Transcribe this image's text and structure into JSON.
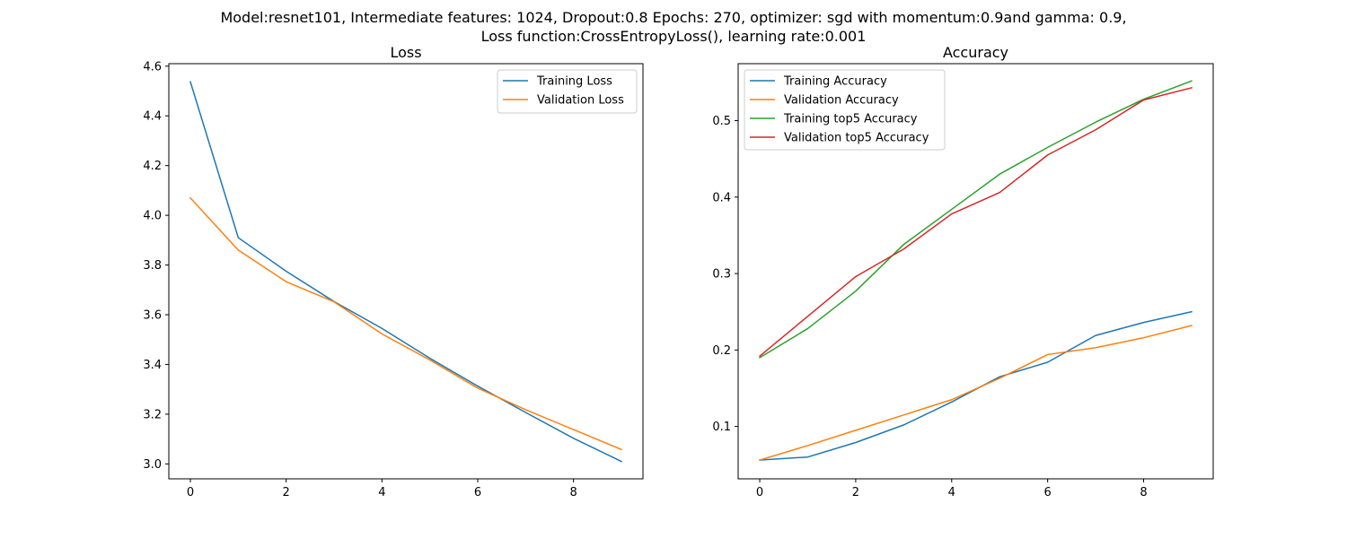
{
  "suptitle": {
    "line1": "Model:resnet101, Intermediate features: 1024, Dropout:0.8 Epochs: 270, optimizer: sgd with momentum:0.9and gamma: 0.9,",
    "line2": "Loss function:CrossEntropyLoss(), learning rate:0.001"
  },
  "chart_data": [
    {
      "type": "line",
      "title": "Loss",
      "xlabel": "",
      "ylabel": "",
      "x": [
        0,
        1,
        2,
        3,
        4,
        5,
        6,
        7,
        8,
        9
      ],
      "xlim": [
        -0.45,
        9.45
      ],
      "ylim": [
        2.94,
        4.61
      ],
      "xticks": [
        0,
        2,
        4,
        6,
        8
      ],
      "yticks": [
        3.0,
        3.2,
        3.4,
        3.6,
        3.8,
        4.0,
        4.2,
        4.4,
        4.6
      ],
      "ytick_labels": [
        "3.0",
        "3.2",
        "3.4",
        "3.6",
        "3.8",
        "4.0",
        "4.2",
        "4.4",
        "4.6"
      ],
      "grid": false,
      "legend": "upper right",
      "series": [
        {
          "name": "Training Loss",
          "color": "#1f77b4",
          "values": [
            4.537,
            3.91,
            3.775,
            3.653,
            3.545,
            3.425,
            3.313,
            3.207,
            3.103,
            3.01
          ]
        },
        {
          "name": "Validation Loss",
          "color": "#ff7f0e",
          "values": [
            4.07,
            3.86,
            3.733,
            3.652,
            3.523,
            3.418,
            3.305,
            3.218,
            3.138,
            3.058
          ]
        }
      ]
    },
    {
      "type": "line",
      "title": "Accuracy",
      "xlabel": "",
      "ylabel": "",
      "x": [
        0,
        1,
        2,
        3,
        4,
        5,
        6,
        7,
        8,
        9
      ],
      "xlim": [
        -0.45,
        9.45
      ],
      "ylim": [
        0.0315,
        0.5745
      ],
      "xticks": [
        0,
        2,
        4,
        6,
        8
      ],
      "yticks": [
        0.1,
        0.2,
        0.3,
        0.4,
        0.5
      ],
      "ytick_labels": [
        "0.1",
        "0.2",
        "0.3",
        "0.4",
        "0.5"
      ],
      "grid": false,
      "legend": "upper left",
      "series": [
        {
          "name": "Training Accuracy",
          "color": "#1f77b4",
          "values": [
            0.056,
            0.06,
            0.079,
            0.102,
            0.132,
            0.165,
            0.184,
            0.219,
            0.236,
            0.25
          ]
        },
        {
          "name": "Validation Accuracy",
          "color": "#ff7f0e",
          "values": [
            0.056,
            0.075,
            0.095,
            0.115,
            0.135,
            0.163,
            0.194,
            0.203,
            0.216,
            0.232
          ]
        },
        {
          "name": "Training top5 Accuracy",
          "color": "#2ca02c",
          "values": [
            0.19,
            0.228,
            0.277,
            0.338,
            0.384,
            0.43,
            0.465,
            0.498,
            0.528,
            0.552
          ]
        },
        {
          "name": "Validation top5 Accuracy",
          "color": "#d62728",
          "values": [
            0.192,
            0.244,
            0.296,
            0.332,
            0.378,
            0.406,
            0.455,
            0.488,
            0.527,
            0.543
          ]
        }
      ]
    }
  ]
}
